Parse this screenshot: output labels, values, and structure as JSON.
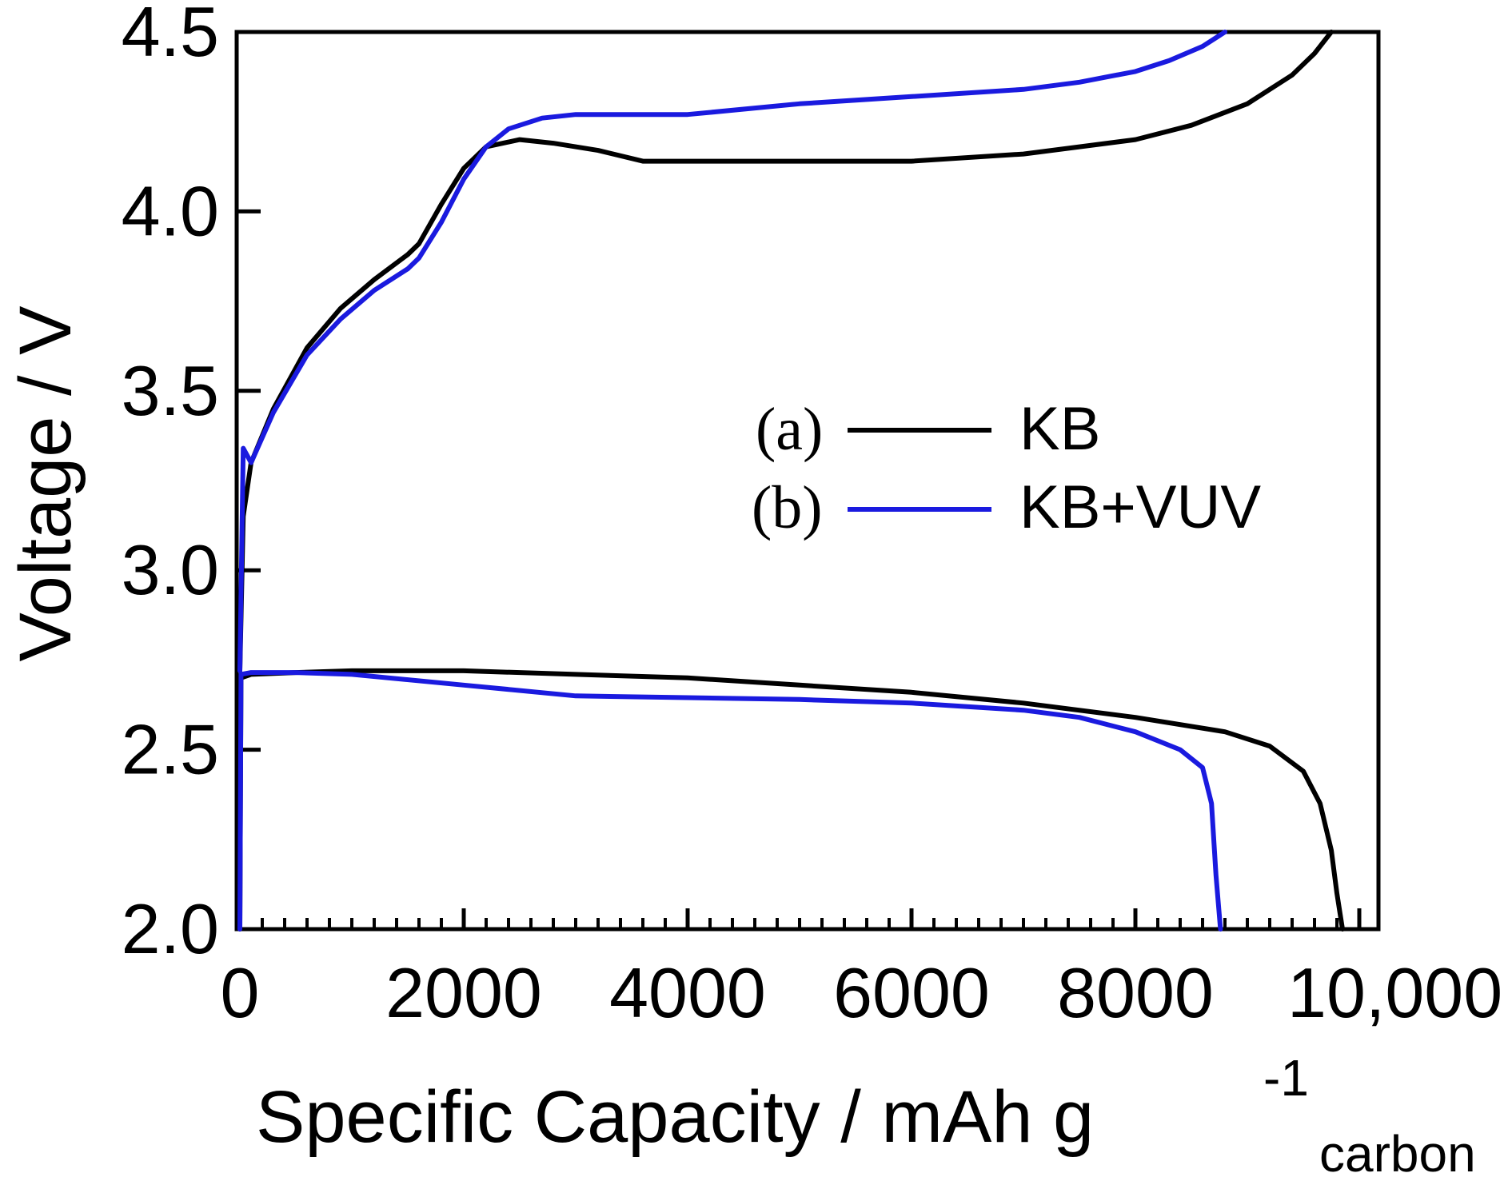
{
  "chart_data": {
    "type": "line",
    "title": "",
    "xlabel": "Specific Capacity / mAh g",
    "xlabel_superscript": "-1",
    "xlabel_subscript": "carbon",
    "ylabel": "Voltage / V",
    "xlim": [
      0,
      10000
    ],
    "ylim": [
      2.0,
      4.5
    ],
    "x_ticks": [
      0,
      2000,
      4000,
      6000,
      8000,
      10000
    ],
    "x_tick_labels": [
      "0",
      "2000",
      "4000",
      "6000",
      "8000",
      "10,000"
    ],
    "y_ticks": [
      2.0,
      2.5,
      3.0,
      3.5,
      4.0,
      4.5
    ],
    "y_tick_labels": [
      "2.0",
      "2.5",
      "3.0",
      "3.5",
      "4.0",
      "4.5"
    ],
    "grid": false,
    "legend_position": "center-right",
    "series": [
      {
        "name": "KB",
        "tag": "(a)",
        "color": "#000000",
        "charge": {
          "x": [
            0,
            30,
            100,
            300,
            600,
            900,
            1200,
            1500,
            1600,
            1800,
            2000,
            2200,
            2500,
            2800,
            3200,
            3600,
            4000,
            5000,
            6000,
            7000,
            7500,
            8000,
            8500,
            9000,
            9400,
            9600,
            9750
          ],
          "y": [
            2.72,
            3.15,
            3.3,
            3.45,
            3.62,
            3.73,
            3.81,
            3.88,
            3.91,
            4.02,
            4.12,
            4.18,
            4.2,
            4.19,
            4.17,
            4.14,
            4.14,
            4.14,
            4.14,
            4.16,
            4.18,
            4.2,
            4.24,
            4.3,
            4.38,
            4.44,
            4.5
          ]
        },
        "discharge": {
          "x": [
            0,
            10,
            100,
            500,
            1000,
            2000,
            3000,
            4000,
            5000,
            6000,
            7000,
            8000,
            8800,
            9200,
            9500,
            9650,
            9750,
            9800,
            9850
          ],
          "y": [
            2.0,
            2.7,
            2.71,
            2.715,
            2.72,
            2.72,
            2.71,
            2.7,
            2.68,
            2.66,
            2.63,
            2.59,
            2.55,
            2.51,
            2.44,
            2.35,
            2.22,
            2.1,
            2.0
          ]
        }
      },
      {
        "name": "KB+VUV",
        "tag": "(b)",
        "color": "#1a1adf",
        "charge": {
          "x": [
            0,
            30,
            100,
            300,
            600,
            900,
            1200,
            1500,
            1600,
            1800,
            2000,
            2200,
            2400,
            2700,
            3000,
            3500,
            4000,
            5000,
            6000,
            7000,
            7500,
            8000,
            8300,
            8600,
            8800
          ],
          "y": [
            2.72,
            3.34,
            3.3,
            3.44,
            3.6,
            3.7,
            3.78,
            3.84,
            3.87,
            3.97,
            4.09,
            4.18,
            4.23,
            4.26,
            4.27,
            4.27,
            4.27,
            4.3,
            4.32,
            4.34,
            4.36,
            4.39,
            4.42,
            4.46,
            4.5
          ]
        },
        "discharge": {
          "x": [
            0,
            10,
            100,
            500,
            1000,
            2000,
            3000,
            4000,
            5000,
            6000,
            7000,
            7500,
            8000,
            8400,
            8600,
            8680,
            8720,
            8760
          ],
          "y": [
            2.0,
            2.71,
            2.715,
            2.715,
            2.71,
            2.68,
            2.65,
            2.645,
            2.64,
            2.63,
            2.61,
            2.59,
            2.55,
            2.5,
            2.45,
            2.35,
            2.15,
            2.0
          ]
        }
      }
    ]
  }
}
